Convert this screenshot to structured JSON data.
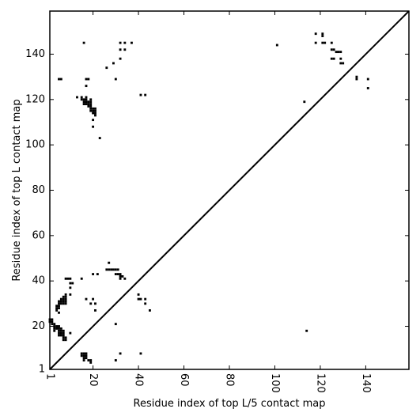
{
  "chart_data": {
    "type": "scatter",
    "title": "",
    "xlabel": "Residue index of top L/5 contact map",
    "ylabel": "Residue index of top L contact map",
    "xlim": [
      1,
      159
    ],
    "ylim": [
      1,
      159
    ],
    "xticks": [
      1,
      20,
      40,
      60,
      80,
      100,
      120,
      140
    ],
    "yticks": [
      1,
      20,
      40,
      60,
      80,
      100,
      120,
      140
    ],
    "xtick_labels": [
      "1",
      "20",
      "40",
      "60",
      "80",
      "100",
      "120",
      "140"
    ],
    "ytick_labels": [
      "1",
      "20",
      "40",
      "60",
      "80",
      "100",
      "120",
      "140"
    ],
    "xtick_rotation": -90,
    "grid": false,
    "legend": "none",
    "diagonal": true,
    "marker_color": "#000000",
    "series": [
      {
        "values": [
          [
            16,
            145
          ],
          [
            5,
            129
          ],
          [
            6,
            129
          ],
          [
            17,
            129
          ],
          [
            18,
            129
          ],
          [
            30,
            129
          ],
          [
            17,
            126
          ],
          [
            13,
            121
          ],
          [
            15,
            121
          ],
          [
            17,
            121
          ],
          [
            15,
            120
          ],
          [
            16,
            120
          ],
          [
            17,
            120
          ],
          [
            19,
            120
          ],
          [
            16,
            119
          ],
          [
            17,
            119
          ],
          [
            18,
            119
          ],
          [
            19,
            119
          ],
          [
            16,
            118
          ],
          [
            17,
            118
          ],
          [
            18,
            118
          ],
          [
            19,
            118
          ],
          [
            18,
            117
          ],
          [
            19,
            117
          ],
          [
            19,
            116
          ],
          [
            20,
            116
          ],
          [
            21,
            116
          ],
          [
            19,
            115
          ],
          [
            20,
            115
          ],
          [
            21,
            115
          ],
          [
            20,
            114
          ],
          [
            21,
            114
          ],
          [
            21,
            113
          ],
          [
            20,
            111
          ],
          [
            20,
            108
          ],
          [
            23,
            103
          ],
          [
            26,
            134
          ],
          [
            29,
            136
          ],
          [
            32,
            145
          ],
          [
            34,
            145
          ],
          [
            37,
            145
          ],
          [
            32,
            142
          ],
          [
            34,
            142
          ],
          [
            32,
            138
          ],
          [
            41,
            122
          ],
          [
            43,
            122
          ],
          [
            27,
            48
          ],
          [
            26,
            45
          ],
          [
            27,
            45
          ],
          [
            28,
            45
          ],
          [
            29,
            45
          ],
          [
            30,
            45
          ],
          [
            31,
            45
          ],
          [
            30,
            43
          ],
          [
            31,
            43
          ],
          [
            32,
            43
          ],
          [
            32,
            42
          ],
          [
            33,
            42
          ],
          [
            32,
            41
          ],
          [
            34,
            41
          ],
          [
            20,
            43
          ],
          [
            22,
            43
          ],
          [
            8,
            41
          ],
          [
            9,
            41
          ],
          [
            10,
            41
          ],
          [
            15,
            41
          ],
          [
            10,
            39
          ],
          [
            11,
            39
          ],
          [
            10,
            37
          ],
          [
            8,
            34
          ],
          [
            10,
            34
          ],
          [
            7,
            33
          ],
          [
            8,
            33
          ],
          [
            6,
            32
          ],
          [
            7,
            32
          ],
          [
            8,
            32
          ],
          [
            17,
            32
          ],
          [
            20,
            32
          ],
          [
            5,
            31
          ],
          [
            6,
            31
          ],
          [
            7,
            31
          ],
          [
            8,
            31
          ],
          [
            5,
            30
          ],
          [
            6,
            30
          ],
          [
            7,
            30
          ],
          [
            8,
            30
          ],
          [
            19,
            30
          ],
          [
            21,
            30
          ],
          [
            4,
            29
          ],
          [
            5,
            29
          ],
          [
            4,
            28
          ],
          [
            5,
            28
          ],
          [
            4,
            27
          ],
          [
            21,
            27
          ],
          [
            5,
            26
          ],
          [
            40,
            34
          ],
          [
            40,
            32
          ],
          [
            41,
            32
          ],
          [
            43,
            32
          ],
          [
            43,
            30
          ],
          [
            45,
            27
          ],
          [
            1,
            23
          ],
          [
            2,
            23
          ],
          [
            1,
            22
          ],
          [
            2,
            22
          ],
          [
            2,
            21
          ],
          [
            3,
            21
          ],
          [
            3,
            20
          ],
          [
            4,
            20
          ],
          [
            5,
            20
          ],
          [
            3,
            19
          ],
          [
            4,
            19
          ],
          [
            5,
            19
          ],
          [
            6,
            19
          ],
          [
            3,
            18
          ],
          [
            5,
            18
          ],
          [
            6,
            18
          ],
          [
            7,
            18
          ],
          [
            5,
            17
          ],
          [
            6,
            17
          ],
          [
            7,
            17
          ],
          [
            10,
            17
          ],
          [
            5,
            16
          ],
          [
            6,
            16
          ],
          [
            7,
            16
          ],
          [
            7,
            15
          ],
          [
            8,
            15
          ],
          [
            7,
            14
          ],
          [
            8,
            14
          ],
          [
            30,
            21
          ],
          [
            15,
            8
          ],
          [
            16,
            8
          ],
          [
            17,
            8
          ],
          [
            15,
            7
          ],
          [
            16,
            7
          ],
          [
            17,
            7
          ],
          [
            16,
            6
          ],
          [
            17,
            6
          ],
          [
            16,
            5
          ],
          [
            18,
            5
          ],
          [
            19,
            5
          ],
          [
            30,
            5
          ],
          [
            19,
            4
          ],
          [
            32,
            8
          ],
          [
            41,
            8
          ],
          [
            101,
            144
          ],
          [
            118,
            149
          ],
          [
            121,
            149
          ],
          [
            121,
            148
          ],
          [
            118,
            145
          ],
          [
            121,
            145
          ],
          [
            122,
            145
          ],
          [
            125,
            145
          ],
          [
            125,
            142
          ],
          [
            126,
            142
          ],
          [
            127,
            141
          ],
          [
            128,
            141
          ],
          [
            129,
            141
          ],
          [
            125,
            138
          ],
          [
            126,
            138
          ],
          [
            129,
            138
          ],
          [
            129,
            136
          ],
          [
            130,
            136
          ],
          [
            136,
            130
          ],
          [
            136,
            129
          ],
          [
            141,
            129
          ],
          [
            113,
            119
          ],
          [
            141,
            125
          ],
          [
            114,
            18
          ]
        ]
      }
    ]
  }
}
